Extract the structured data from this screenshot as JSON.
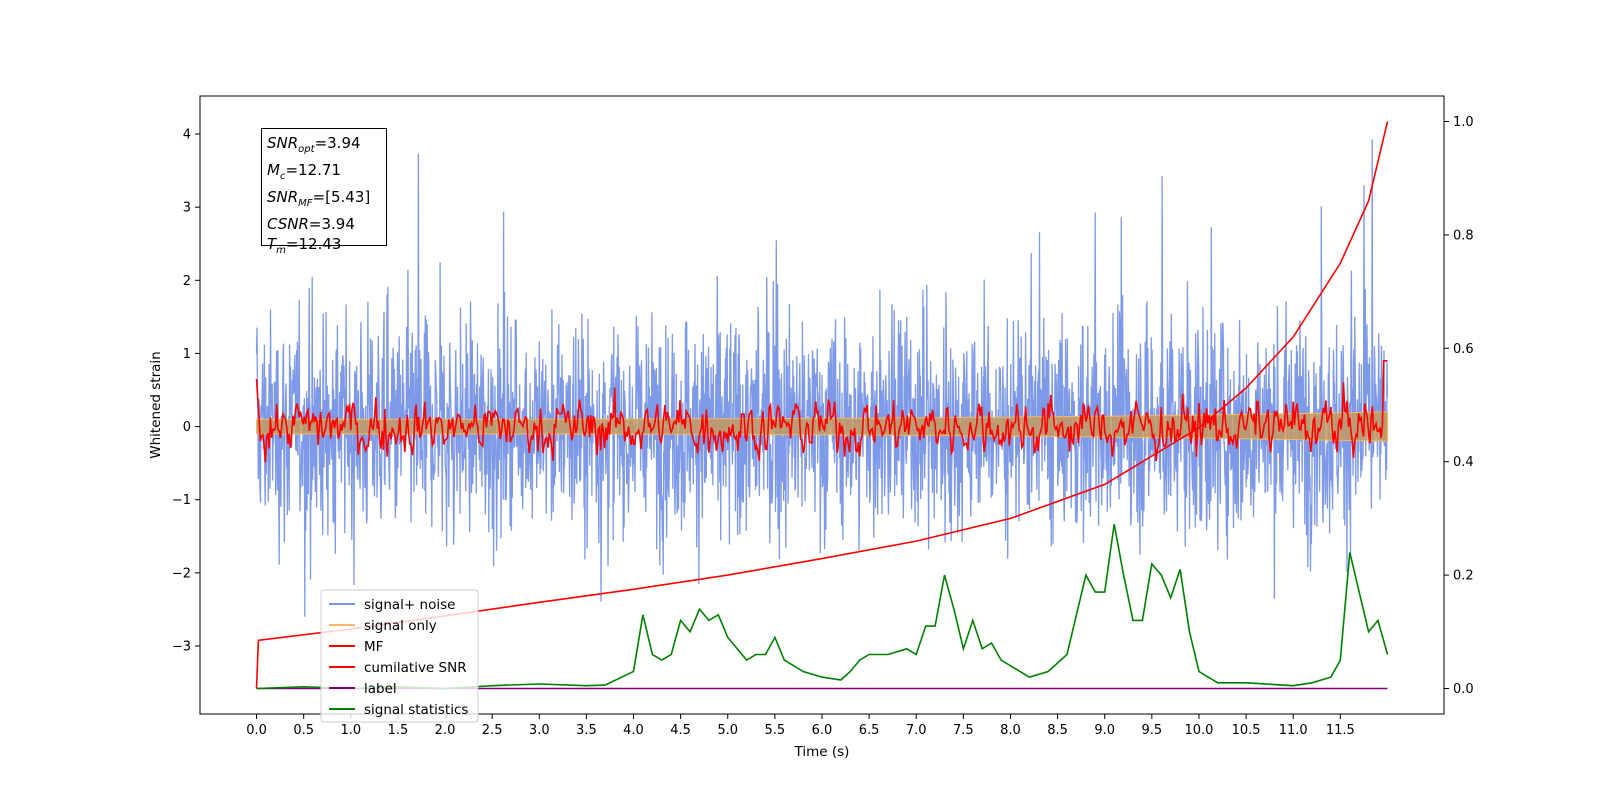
{
  "chart_data": {
    "type": "line",
    "title": "",
    "xlabel": "Time (s)",
    "ylabel": "Whitened strain",
    "y2label": "",
    "xlim": [
      -0.6,
      12.6
    ],
    "ylim": [
      -3.93,
      4.52
    ],
    "y2lim": [
      -0.045,
      1.045
    ],
    "xticks": [
      "0.0",
      "0.5",
      "1.0",
      "1.5",
      "2.0",
      "2.5",
      "3.0",
      "3.5",
      "4.0",
      "4.5",
      "5.0",
      "5.5",
      "6.0",
      "6.5",
      "7.0",
      "7.5",
      "8.0",
      "8.5",
      "9.0",
      "9.5",
      "10.0",
      "10.5",
      "11.0",
      "11.5"
    ],
    "yticks": [
      "4",
      "3",
      "2",
      "1",
      "0",
      "−1",
      "−2",
      "−3"
    ],
    "y2ticks": [
      "1.0",
      "0.8",
      "0.6",
      "0.4",
      "0.2",
      "0.0"
    ],
    "legend_position": "lower-left",
    "series": [
      {
        "name": "signal+ noise",
        "color": "#7693e6",
        "axis": "left",
        "description": "noisy whitened strain, roughly between -2.5 and 4.2"
      },
      {
        "name": "signal only",
        "color": "#f5b962",
        "axis": "left",
        "description": "chirp growing from ±0.1 to ±0.2 near 12 s"
      },
      {
        "name": "MF",
        "color": "#ff0000",
        "axis": "left",
        "description": "matched filter output oscillating near 0"
      },
      {
        "name": "cumilative SNR",
        "color": "#ff0000",
        "axis": "right",
        "x": [
          0.0,
          0.02,
          1.0,
          2.0,
          3.0,
          4.0,
          5.0,
          6.0,
          7.0,
          8.0,
          9.0,
          10.0,
          10.5,
          11.0,
          11.5,
          11.8,
          12.0
        ],
        "values": [
          0.0,
          0.085,
          0.105,
          0.128,
          0.152,
          0.175,
          0.2,
          0.229,
          0.26,
          0.3,
          0.36,
          0.46,
          0.53,
          0.62,
          0.75,
          0.86,
          1.0
        ]
      },
      {
        "name": "label",
        "color": "#800080",
        "axis": "right",
        "x": [
          0.0,
          12.0
        ],
        "values": [
          0.0,
          0.0
        ]
      },
      {
        "name": "signal statistics",
        "color": "#008000",
        "axis": "right",
        "x": [
          0.0,
          0.5,
          1.0,
          1.5,
          2.0,
          2.5,
          3.0,
          3.5,
          3.7,
          4.0,
          4.1,
          4.2,
          4.3,
          4.4,
          4.5,
          4.6,
          4.7,
          4.8,
          4.9,
          5.0,
          5.1,
          5.2,
          5.3,
          5.4,
          5.5,
          5.6,
          5.8,
          6.0,
          6.2,
          6.3,
          6.4,
          6.5,
          6.7,
          6.9,
          7.0,
          7.1,
          7.2,
          7.3,
          7.4,
          7.5,
          7.6,
          7.7,
          7.8,
          7.9,
          8.0,
          8.2,
          8.4,
          8.6,
          8.8,
          8.9,
          9.0,
          9.1,
          9.2,
          9.3,
          9.4,
          9.5,
          9.6,
          9.7,
          9.8,
          9.9,
          10.0,
          10.2,
          10.5,
          11.0,
          11.2,
          11.4,
          11.5,
          11.6,
          11.7,
          11.8,
          11.9,
          12.0
        ],
        "values": [
          0.0,
          0.003,
          0.0,
          0.003,
          0.0,
          0.005,
          0.008,
          0.005,
          0.006,
          0.03,
          0.13,
          0.06,
          0.05,
          0.06,
          0.12,
          0.1,
          0.14,
          0.12,
          0.13,
          0.09,
          0.07,
          0.05,
          0.06,
          0.06,
          0.09,
          0.05,
          0.03,
          0.02,
          0.015,
          0.03,
          0.05,
          0.06,
          0.06,
          0.07,
          0.06,
          0.11,
          0.11,
          0.2,
          0.14,
          0.07,
          0.12,
          0.07,
          0.08,
          0.05,
          0.04,
          0.02,
          0.03,
          0.06,
          0.2,
          0.17,
          0.17,
          0.29,
          0.2,
          0.12,
          0.12,
          0.22,
          0.2,
          0.16,
          0.21,
          0.1,
          0.03,
          0.01,
          0.01,
          0.005,
          0.01,
          0.02,
          0.05,
          0.24,
          0.17,
          0.1,
          0.12,
          0.06
        ]
      }
    ],
    "annotation": {
      "snr_opt": {
        "base": "SNR",
        "sub": "opt",
        "value": "=3.94"
      },
      "mc": {
        "base": "M",
        "sub": "c",
        "value": "=12.71"
      },
      "snr_mf": {
        "base": "SNR",
        "sub": "MF",
        "value": "=[5.43]"
      },
      "csnr": {
        "base": "CSNR",
        "sub": "",
        "value": "=3.94"
      },
      "tm": {
        "base": "T",
        "sub": "m",
        "value": "=12.43"
      }
    }
  }
}
